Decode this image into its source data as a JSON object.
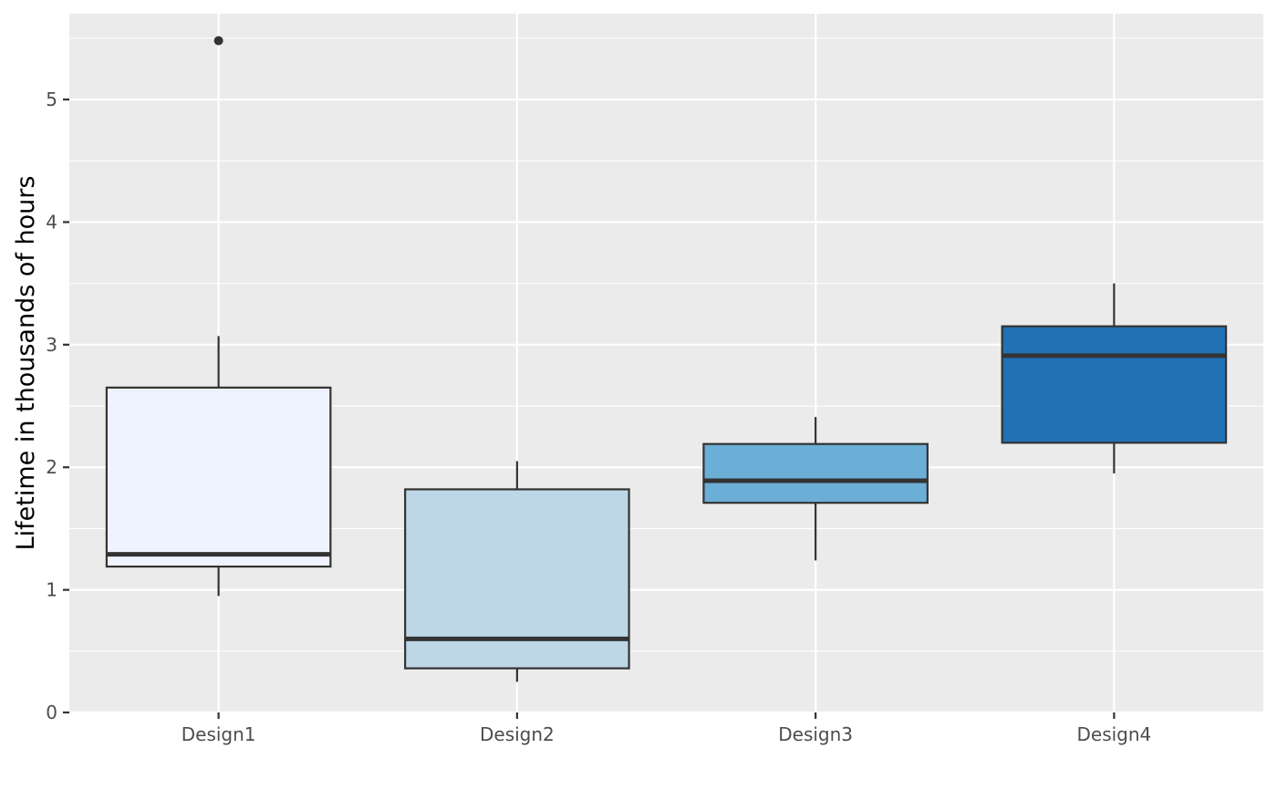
{
  "chart_data": {
    "type": "boxplot",
    "title": "",
    "xlabel": "",
    "ylabel": "Lifetime in thousands of hours",
    "ylim": [
      0,
      5.7
    ],
    "yticks": [
      0,
      1,
      2,
      3,
      4,
      5
    ],
    "grid": true,
    "legend": "none",
    "categories": [
      "Design1",
      "Design2",
      "Design3",
      "Design4"
    ],
    "boxes": [
      {
        "category": "Design1",
        "whisker_low": 0.95,
        "q1": 1.19,
        "median": 1.29,
        "q3": 2.65,
        "whisker_high": 3.07,
        "outliers": [
          5.48
        ],
        "fill": "#eff3ff"
      },
      {
        "category": "Design2",
        "whisker_low": 0.25,
        "q1": 0.36,
        "median": 0.6,
        "q3": 1.82,
        "whisker_high": 2.05,
        "outliers": [],
        "fill": "#bdd7e7"
      },
      {
        "category": "Design3",
        "whisker_low": 1.24,
        "q1": 1.71,
        "median": 1.89,
        "q3": 2.19,
        "whisker_high": 2.41,
        "outliers": [],
        "fill": "#6baed6"
      },
      {
        "category": "Design4",
        "whisker_low": 1.95,
        "q1": 2.2,
        "median": 2.91,
        "q3": 3.15,
        "whisker_high": 3.5,
        "outliers": [],
        "fill": "#2171b5"
      }
    ]
  },
  "colors": {
    "panel_background": "#ebebeb",
    "grid_line": "#ffffff",
    "box_outline": "#333333",
    "tick_text": "#4d4d4d"
  }
}
